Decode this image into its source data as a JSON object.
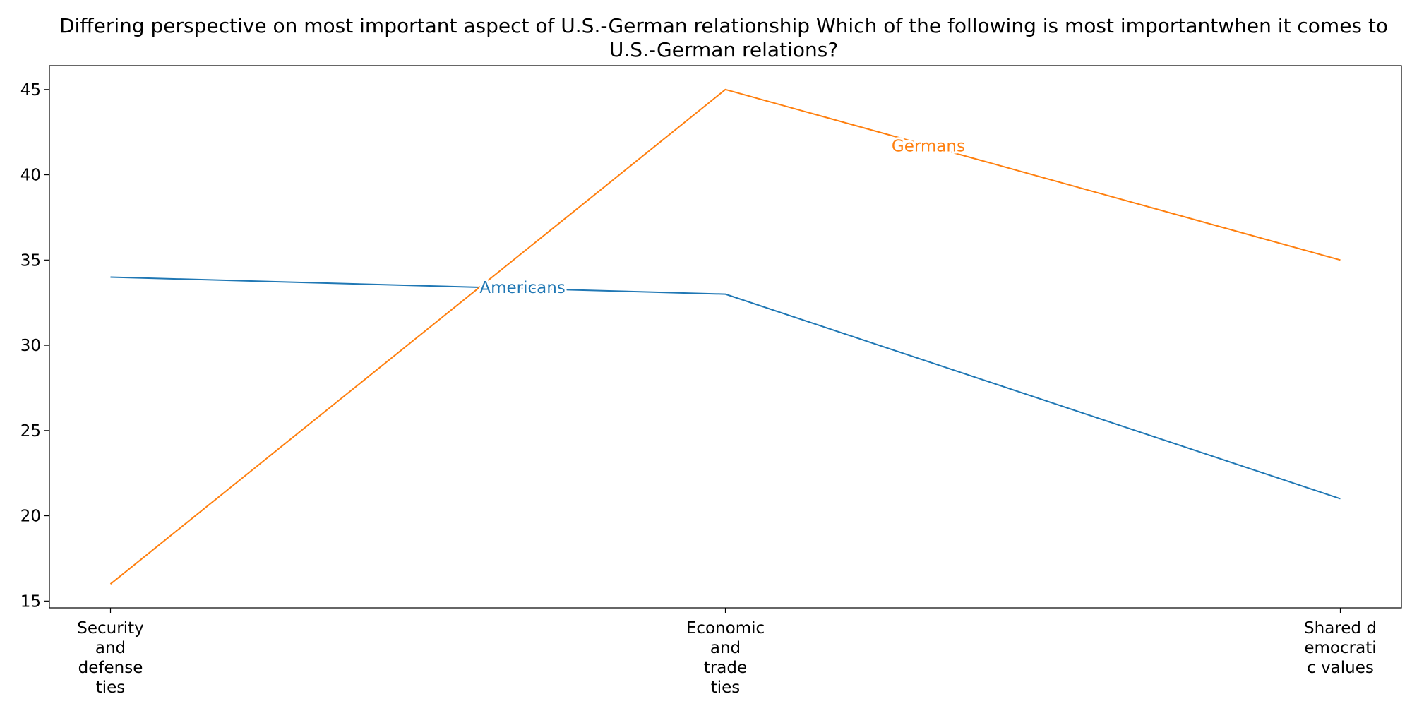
{
  "chart_data": {
    "type": "line",
    "title": "Differing perspective on most important aspect of U.S.-German relationship Which of the following is most importantwhen it comes to U.S.-German relations?",
    "xlabel": "",
    "ylabel": "",
    "categories": [
      [
        "Security",
        "and",
        "defense",
        "ties"
      ],
      [
        "Economic",
        "and",
        "trade",
        "ties"
      ],
      [
        "Shared d",
        "emocrati",
        "c values"
      ]
    ],
    "ylim": [
      14.6,
      46.4
    ],
    "yticks": [
      15,
      20,
      25,
      30,
      35,
      40,
      45
    ],
    "grid": false,
    "series": [
      {
        "name": "Americans",
        "color": "#1f77b4",
        "values": [
          34,
          33,
          21
        ],
        "label_position": [
          0.67,
          33.4
        ]
      },
      {
        "name": "Germans",
        "color": "#ff7f0e",
        "values": [
          16,
          45,
          35
        ],
        "label_position": [
          1.33,
          41.7
        ]
      }
    ]
  }
}
